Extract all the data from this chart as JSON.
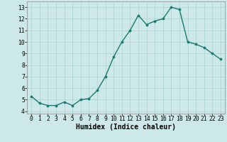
{
  "x": [
    0,
    1,
    2,
    3,
    4,
    5,
    6,
    7,
    8,
    9,
    10,
    11,
    12,
    13,
    14,
    15,
    16,
    17,
    18,
    19,
    20,
    21,
    22,
    23
  ],
  "y": [
    5.3,
    4.7,
    4.5,
    4.5,
    4.8,
    4.5,
    5.0,
    5.1,
    5.8,
    7.0,
    8.7,
    10.0,
    11.0,
    12.3,
    11.5,
    11.8,
    12.0,
    13.0,
    12.8,
    10.0,
    9.8,
    9.5,
    9.0,
    8.5
  ],
  "line_color": "#1a7a6e",
  "marker": "o",
  "marker_size": 2.2,
  "bg_color": "#cce8e8",
  "grid_color": "#aad0d0",
  "xlabel": "Humidex (Indice chaleur)",
  "xlim": [
    -0.5,
    23.5
  ],
  "ylim": [
    3.8,
    13.5
  ],
  "yticks": [
    4,
    5,
    6,
    7,
    8,
    9,
    10,
    11,
    12,
    13
  ],
  "xticks": [
    0,
    1,
    2,
    3,
    4,
    5,
    6,
    7,
    8,
    9,
    10,
    11,
    12,
    13,
    14,
    15,
    16,
    17,
    18,
    19,
    20,
    21,
    22,
    23
  ],
  "xtick_labels": [
    "0",
    "1",
    "2",
    "3",
    "4",
    "5",
    "6",
    "7",
    "8",
    "9",
    "10",
    "11",
    "12",
    "13",
    "14",
    "15",
    "16",
    "17",
    "18",
    "19",
    "20",
    "21",
    "22",
    "23"
  ],
  "tick_fontsize": 5.8,
  "xlabel_fontsize": 7.0,
  "line_width": 1.0,
  "spine_color": "#888888"
}
